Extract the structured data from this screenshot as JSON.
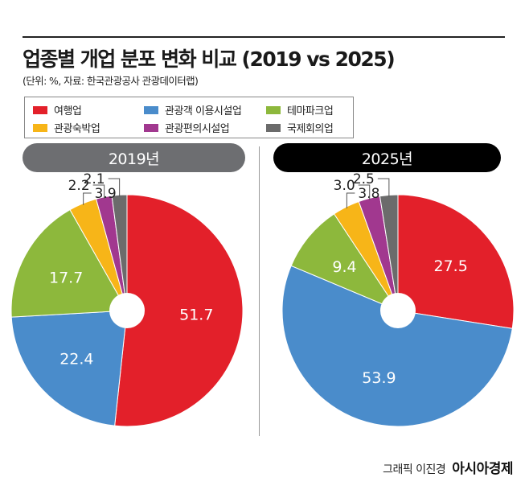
{
  "title": "업종별 개업 분포 변화 비교 (2019 vs 2025)",
  "subtitle": "(단위: %, 자료: 한국관광공사 관광데이터랩)",
  "legend": [
    {
      "label": "여행업",
      "color": "#e3202a"
    },
    {
      "label": "관광객 이용시설업",
      "color": "#4a8ccb"
    },
    {
      "label": "테마파크업",
      "color": "#8db83c"
    },
    {
      "label": "관광숙박업",
      "color": "#f7b518"
    },
    {
      "label": "관광편의시설업",
      "color": "#a1388f"
    },
    {
      "label": "국제회의업",
      "color": "#6b6b6b"
    }
  ],
  "chart_data": [
    {
      "type": "pie",
      "title": "2019년",
      "header_color": "#6d6e71",
      "categories": [
        "여행업",
        "관광객 이용시설업",
        "테마파크업",
        "관광숙박업",
        "관광편의시설업",
        "국제회의업"
      ],
      "values": [
        51.7,
        22.4,
        17.7,
        3.9,
        2.2,
        2.1
      ],
      "labels": [
        "51.7",
        "22.4",
        "17.7",
        "3.9",
        "2.2",
        "2.1"
      ]
    },
    {
      "type": "pie",
      "title": "2025년",
      "header_color": "#000000",
      "categories": [
        "여행업",
        "관광객 이용시설업",
        "테마파크업",
        "관광숙박업",
        "관광편의시설업",
        "국제회의업"
      ],
      "values": [
        27.5,
        53.9,
        9.4,
        3.8,
        3.0,
        2.5
      ],
      "labels": [
        "27.5",
        "53.9",
        "9.4",
        "3.8",
        "3.0",
        "2.5"
      ]
    }
  ],
  "credit": {
    "graphic": "그래픽 이진경",
    "brand": "아시아경제",
    "mark": "ㅁ"
  }
}
